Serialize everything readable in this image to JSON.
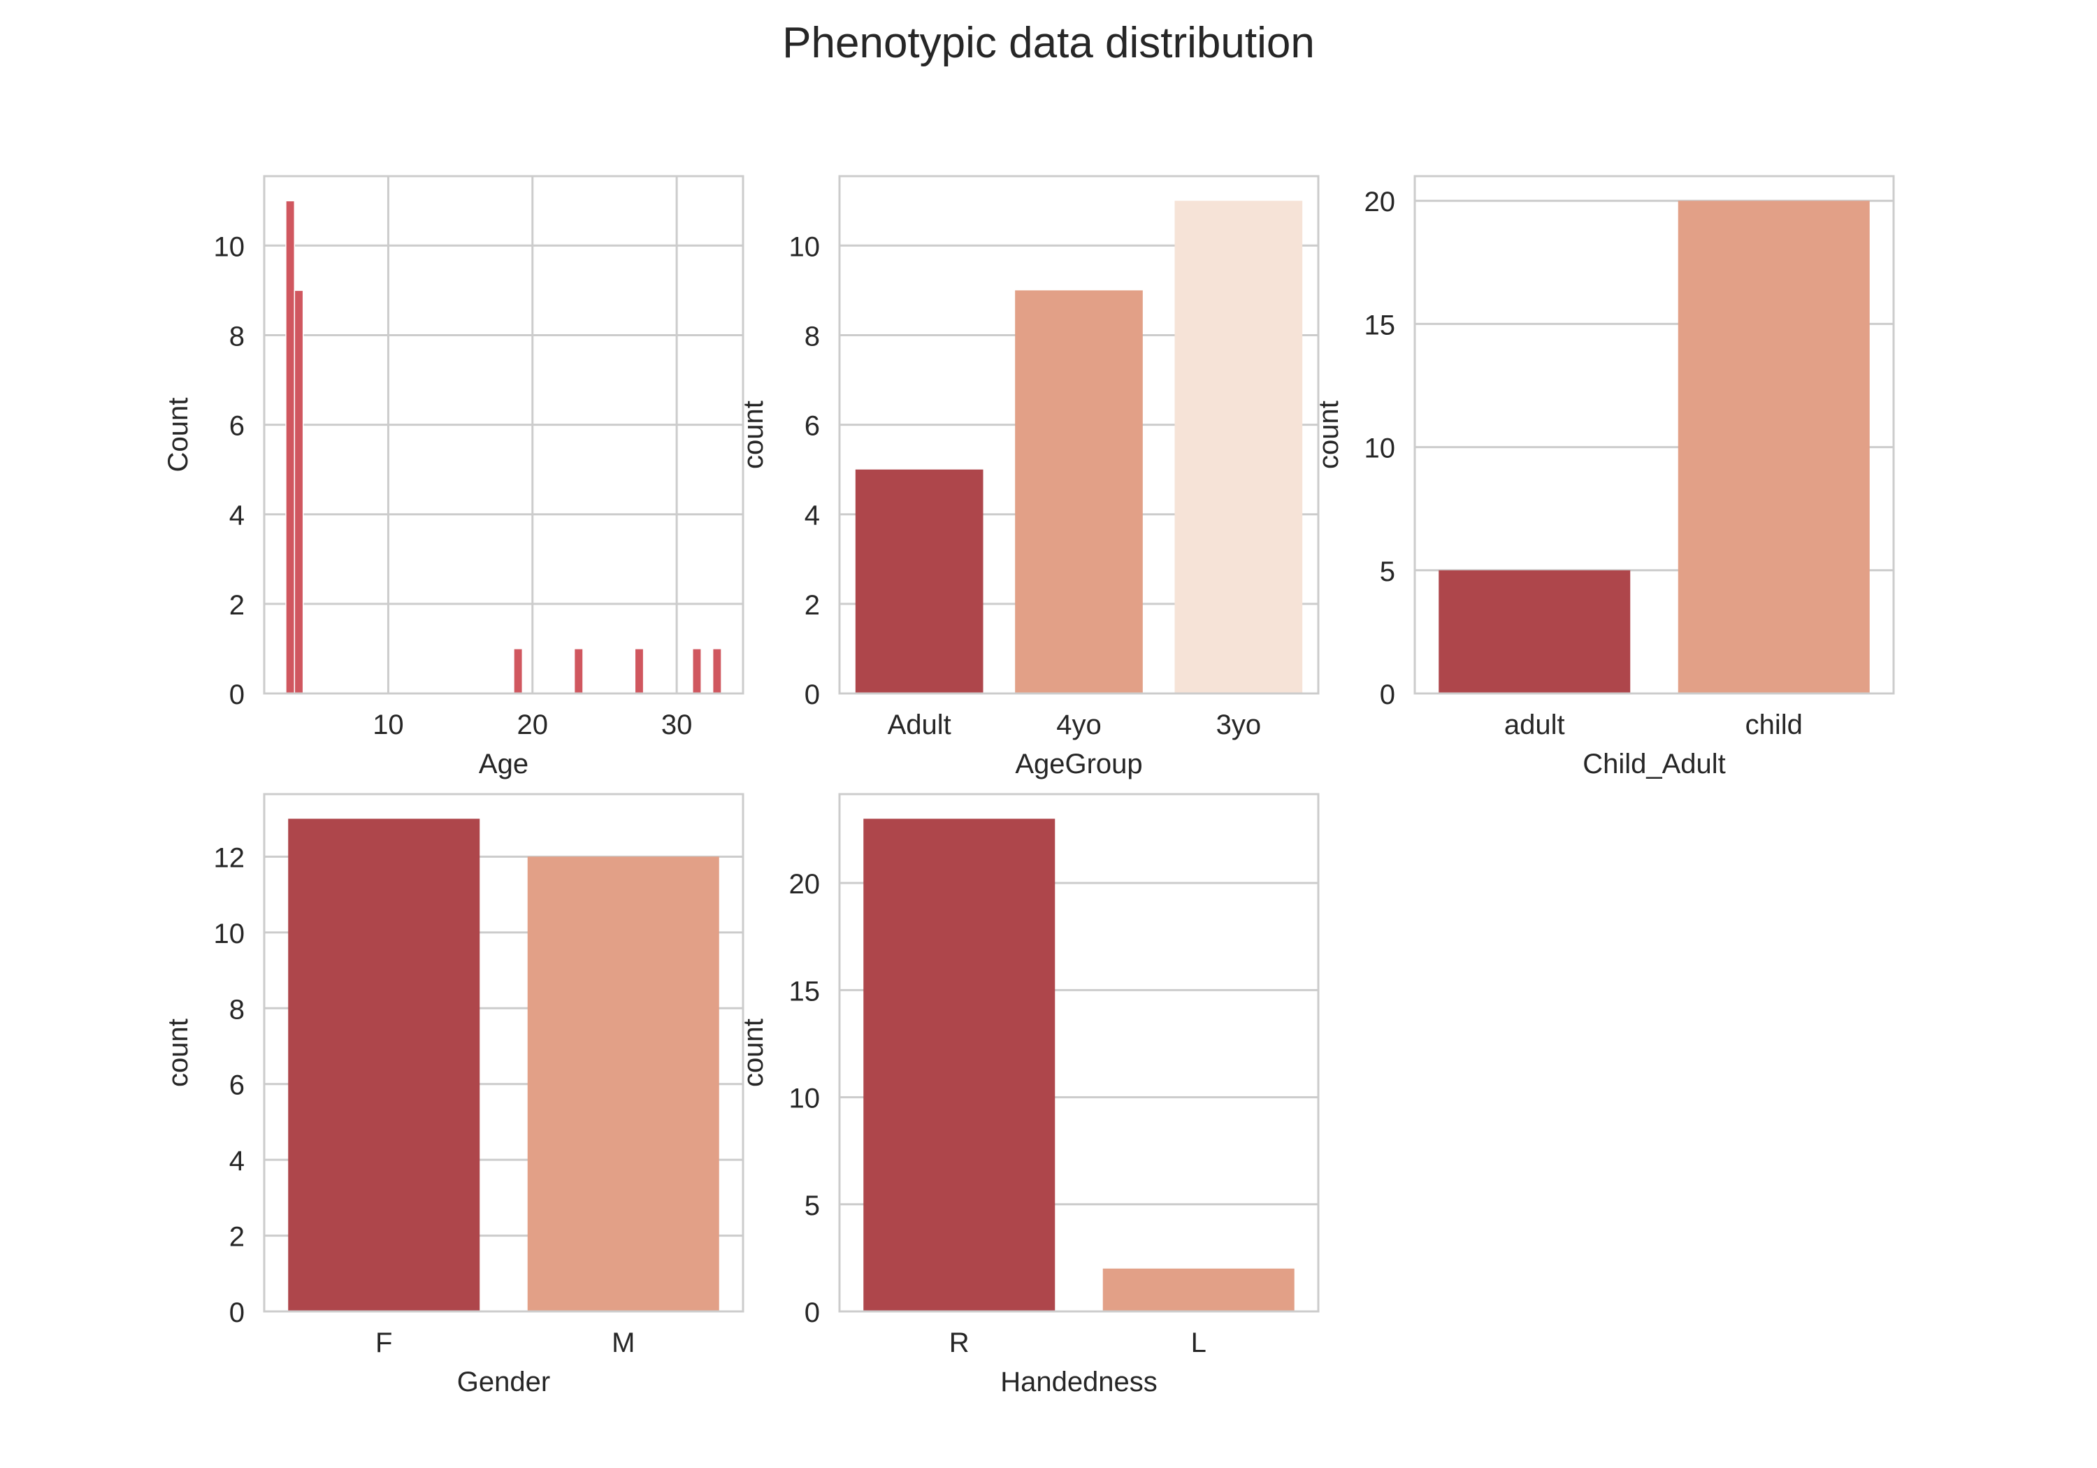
{
  "figure": {
    "title": "Phenotypic data distribution"
  },
  "colors": {
    "background": "#ffffff",
    "grid": "#cccccc",
    "spine": "#cccccc",
    "text": "#262626",
    "hist_bar": "#d0575f",
    "palette": [
      "#ae464b",
      "#e2a087",
      "#f6e3d7"
    ]
  },
  "chart_data": [
    {
      "type": "histogram",
      "xlabel": "Age",
      "ylabel": "Count",
      "xlim": [
        1.4,
        34.6
      ],
      "ylim": [
        0,
        11.55
      ],
      "xticks": [
        10,
        20,
        30
      ],
      "yticks": [
        0,
        2,
        4,
        6,
        8,
        10
      ],
      "grid": "both",
      "bin_width": 0.6,
      "bins": [
        {
          "x": 3.2,
          "count": 11
        },
        {
          "x": 3.8,
          "count": 9
        },
        {
          "x": 19.0,
          "count": 1
        },
        {
          "x": 23.2,
          "count": 1
        },
        {
          "x": 27.4,
          "count": 1
        },
        {
          "x": 31.4,
          "count": 1
        },
        {
          "x": 32.8,
          "count": 1
        }
      ]
    },
    {
      "type": "bar",
      "xlabel": "AgeGroup",
      "ylabel": "count",
      "categories": [
        "Adult",
        "4yo",
        "3yo"
      ],
      "values": [
        5,
        9,
        11
      ],
      "ylim": [
        0,
        11.55
      ],
      "yticks": [
        0,
        2,
        4,
        6,
        8,
        10
      ],
      "grid": "y"
    },
    {
      "type": "bar",
      "xlabel": "Child_Adult",
      "ylabel": "count",
      "categories": [
        "adult",
        "child"
      ],
      "values": [
        5,
        20
      ],
      "ylim": [
        0,
        21
      ],
      "yticks": [
        0,
        5,
        10,
        15,
        20
      ],
      "grid": "y"
    },
    {
      "type": "bar",
      "xlabel": "Gender",
      "ylabel": "count",
      "categories": [
        "F",
        "M"
      ],
      "values": [
        13,
        12
      ],
      "ylim": [
        0,
        13.65
      ],
      "yticks": [
        0,
        2,
        4,
        6,
        8,
        10,
        12
      ],
      "grid": "y"
    },
    {
      "type": "bar",
      "xlabel": "Handedness",
      "ylabel": "count",
      "categories": [
        "R",
        "L"
      ],
      "values": [
        23,
        2
      ],
      "ylim": [
        0,
        24.15
      ],
      "yticks": [
        0,
        5,
        10,
        15,
        20
      ],
      "grid": "y"
    }
  ]
}
